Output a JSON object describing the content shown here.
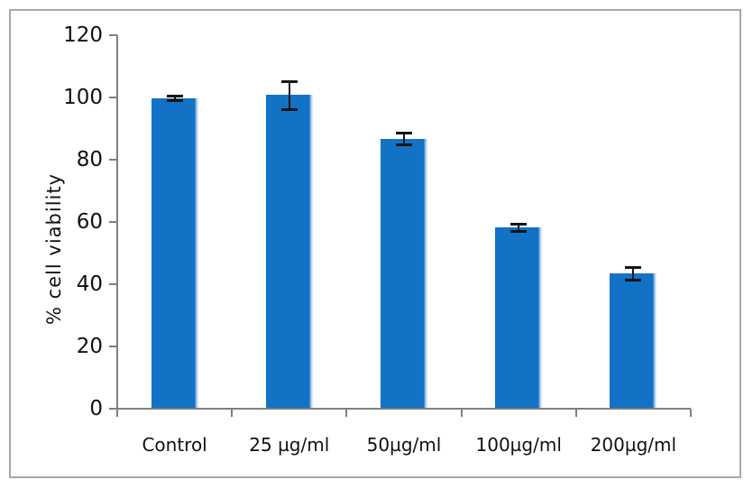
{
  "chart_data": {
    "type": "bar",
    "title": "",
    "xlabel": "",
    "ylabel": "% cell viability",
    "categories": [
      "Control",
      "25 µg/ml",
      "50µg/ml",
      "100µg/ml",
      "200µg/ml"
    ],
    "series": [
      {
        "name": "% cell viability",
        "values": [
          99.8,
          100.8,
          86.8,
          58.3,
          43.5
        ],
        "errors": [
          0.8,
          4.5,
          1.8,
          1.2,
          2.0
        ]
      }
    ],
    "ylim": [
      0,
      120
    ],
    "yticks": [
      0,
      20,
      40,
      60,
      80,
      100,
      120
    ],
    "grid": false,
    "legend_position": "none",
    "colors": {
      "bar_fill": "#1272c6",
      "bar_right_highlight": "#a9cbec",
      "error_bar": "#141414",
      "axis": "#7f7f7f",
      "text": "#111111",
      "outer_border": "#a8a8a8",
      "background": "#ffffff"
    }
  }
}
